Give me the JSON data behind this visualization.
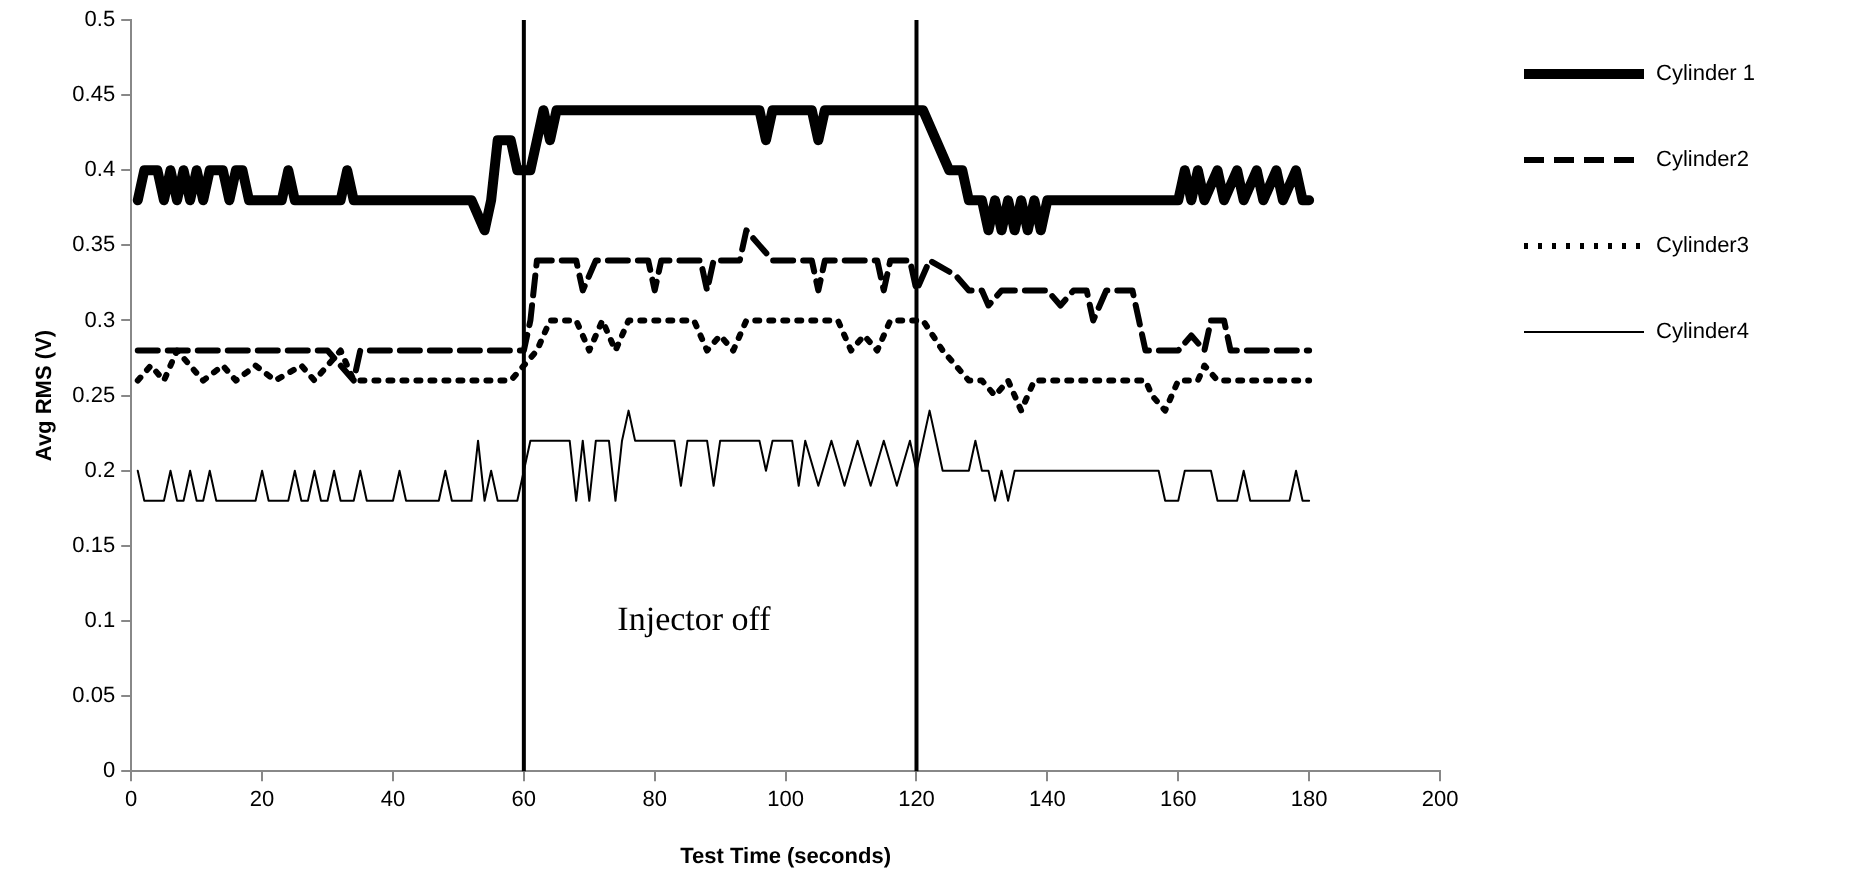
{
  "chart_data": {
    "type": "line",
    "xlabel": "Test Time (seconds)",
    "ylabel": "Avg RMS (V)",
    "xlim": [
      0,
      200
    ],
    "xticks": [
      0,
      20,
      40,
      60,
      80,
      100,
      120,
      140,
      160,
      180,
      200
    ],
    "ylim": [
      0,
      0.5
    ],
    "yticks": [
      0,
      0.05,
      0.1,
      0.15,
      0.2,
      0.25,
      0.3,
      0.35,
      0.4,
      0.45,
      0.5
    ],
    "grid": false,
    "legend": "right",
    "marker": "none",
    "ref_lines": [
      {
        "axis": "x",
        "value": 60,
        "color": "#000000"
      },
      {
        "axis": "x",
        "value": 120,
        "color": "#000000"
      }
    ],
    "annotations": [
      "Injector off"
    ],
    "series": [
      {
        "name": "Cylinder 1",
        "color": "#000000",
        "line_style": "solid",
        "x": [
          1,
          2,
          4,
          5,
          6,
          7,
          8,
          9,
          10,
          11,
          12,
          14,
          15,
          16,
          17,
          18,
          23,
          24,
          25,
          32,
          33,
          34,
          52,
          54,
          55,
          56,
          58,
          59,
          61,
          62,
          63,
          64,
          65,
          96,
          97,
          98,
          104,
          105,
          106,
          121,
          123,
          125,
          127,
          128,
          130,
          131,
          132,
          133,
          134,
          135,
          136,
          137,
          138,
          139,
          140,
          160,
          161,
          162,
          163,
          164,
          166,
          167,
          169,
          170,
          172,
          173,
          175,
          176,
          178,
          179,
          180
        ],
        "values": [
          0.38,
          0.4,
          0.4,
          0.38,
          0.4,
          0.38,
          0.4,
          0.38,
          0.4,
          0.38,
          0.4,
          0.4,
          0.38,
          0.4,
          0.4,
          0.38,
          0.38,
          0.4,
          0.38,
          0.38,
          0.4,
          0.38,
          0.38,
          0.36,
          0.38,
          0.42,
          0.42,
          0.4,
          0.4,
          0.42,
          0.44,
          0.42,
          0.44,
          0.44,
          0.42,
          0.44,
          0.44,
          0.42,
          0.44,
          0.44,
          0.42,
          0.4,
          0.4,
          0.38,
          0.38,
          0.36,
          0.38,
          0.36,
          0.38,
          0.36,
          0.38,
          0.36,
          0.38,
          0.36,
          0.38,
          0.38,
          0.4,
          0.38,
          0.4,
          0.38,
          0.4,
          0.38,
          0.4,
          0.38,
          0.4,
          0.38,
          0.4,
          0.38,
          0.4,
          0.38,
          0.38
        ]
      },
      {
        "name": "Cylinder2",
        "color": "#000000",
        "line_style": "dashed",
        "x": [
          1,
          30,
          32,
          34,
          35,
          60,
          61,
          62,
          68,
          69,
          71,
          79,
          80,
          81,
          87,
          88,
          89,
          93,
          94,
          96,
          98,
          104,
          105,
          106,
          114,
          115,
          116,
          119,
          120,
          122,
          126,
          128,
          130,
          131,
          133,
          140,
          142,
          144,
          146,
          147,
          149,
          151,
          153,
          154,
          155,
          160,
          162,
          164,
          165,
          167,
          168,
          180
        ],
        "values": [
          0.28,
          0.28,
          0.27,
          0.26,
          0.28,
          0.28,
          0.3,
          0.34,
          0.34,
          0.32,
          0.34,
          0.34,
          0.32,
          0.34,
          0.34,
          0.32,
          0.34,
          0.34,
          0.36,
          0.35,
          0.34,
          0.34,
          0.32,
          0.34,
          0.34,
          0.32,
          0.34,
          0.34,
          0.32,
          0.34,
          0.33,
          0.32,
          0.32,
          0.31,
          0.32,
          0.32,
          0.31,
          0.32,
          0.32,
          0.3,
          0.32,
          0.32,
          0.32,
          0.3,
          0.28,
          0.28,
          0.29,
          0.28,
          0.3,
          0.3,
          0.28,
          0.28
        ]
      },
      {
        "name": "Cylinder3",
        "color": "#000000",
        "line_style": "dotted",
        "x": [
          1,
          3,
          5,
          7,
          9,
          11,
          14,
          16,
          19,
          22,
          26,
          28,
          30,
          32,
          34,
          58,
          60,
          62,
          64,
          68,
          70,
          72,
          74,
          76,
          86,
          88,
          90,
          92,
          94,
          108,
          110,
          112,
          114,
          116,
          121,
          124,
          126,
          128,
          130,
          132,
          134,
          136,
          138,
          140,
          155,
          156,
          158,
          160,
          163,
          164,
          166,
          180
        ],
        "values": [
          0.26,
          0.27,
          0.26,
          0.28,
          0.27,
          0.26,
          0.27,
          0.26,
          0.27,
          0.26,
          0.27,
          0.26,
          0.27,
          0.28,
          0.26,
          0.26,
          0.27,
          0.28,
          0.3,
          0.3,
          0.28,
          0.3,
          0.28,
          0.3,
          0.3,
          0.28,
          0.29,
          0.28,
          0.3,
          0.3,
          0.28,
          0.29,
          0.28,
          0.3,
          0.3,
          0.28,
          0.27,
          0.26,
          0.26,
          0.25,
          0.26,
          0.24,
          0.26,
          0.26,
          0.26,
          0.25,
          0.24,
          0.26,
          0.26,
          0.27,
          0.26,
          0.26
        ]
      },
      {
        "name": "Cylinder4",
        "color": "#000000",
        "line_style": "solid",
        "x": [
          1,
          2,
          5,
          6,
          7,
          8,
          9,
          10,
          11,
          12,
          13,
          19,
          20,
          21,
          24,
          25,
          26,
          27,
          28,
          29,
          30,
          31,
          32,
          34,
          35,
          36,
          40,
          41,
          42,
          47,
          48,
          49,
          52,
          53,
          54,
          55,
          56,
          59,
          61,
          67,
          68,
          69,
          70,
          71,
          73,
          74,
          75,
          76,
          77,
          83,
          84,
          85,
          88,
          89,
          90,
          96,
          97,
          98,
          101,
          102,
          103,
          105,
          107,
          109,
          111,
          113,
          115,
          117,
          119,
          120,
          122,
          124,
          128,
          129,
          130,
          131,
          132,
          133,
          134,
          135,
          157,
          158,
          160,
          161,
          165,
          166,
          169,
          170,
          171,
          177,
          178,
          179,
          180
        ],
        "values": [
          0.2,
          0.18,
          0.18,
          0.2,
          0.18,
          0.18,
          0.2,
          0.18,
          0.18,
          0.2,
          0.18,
          0.18,
          0.2,
          0.18,
          0.18,
          0.2,
          0.18,
          0.18,
          0.2,
          0.18,
          0.18,
          0.2,
          0.18,
          0.18,
          0.2,
          0.18,
          0.18,
          0.2,
          0.18,
          0.18,
          0.2,
          0.18,
          0.18,
          0.22,
          0.18,
          0.2,
          0.18,
          0.18,
          0.22,
          0.22,
          0.18,
          0.22,
          0.18,
          0.22,
          0.22,
          0.18,
          0.22,
          0.24,
          0.22,
          0.22,
          0.19,
          0.22,
          0.22,
          0.19,
          0.22,
          0.22,
          0.2,
          0.22,
          0.22,
          0.19,
          0.22,
          0.19,
          0.22,
          0.19,
          0.22,
          0.19,
          0.22,
          0.19,
          0.22,
          0.2,
          0.24,
          0.2,
          0.2,
          0.22,
          0.2,
          0.2,
          0.18,
          0.2,
          0.18,
          0.2,
          0.2,
          0.18,
          0.18,
          0.2,
          0.2,
          0.18,
          0.18,
          0.2,
          0.18,
          0.18,
          0.2,
          0.18,
          0.18
        ]
      }
    ]
  }
}
